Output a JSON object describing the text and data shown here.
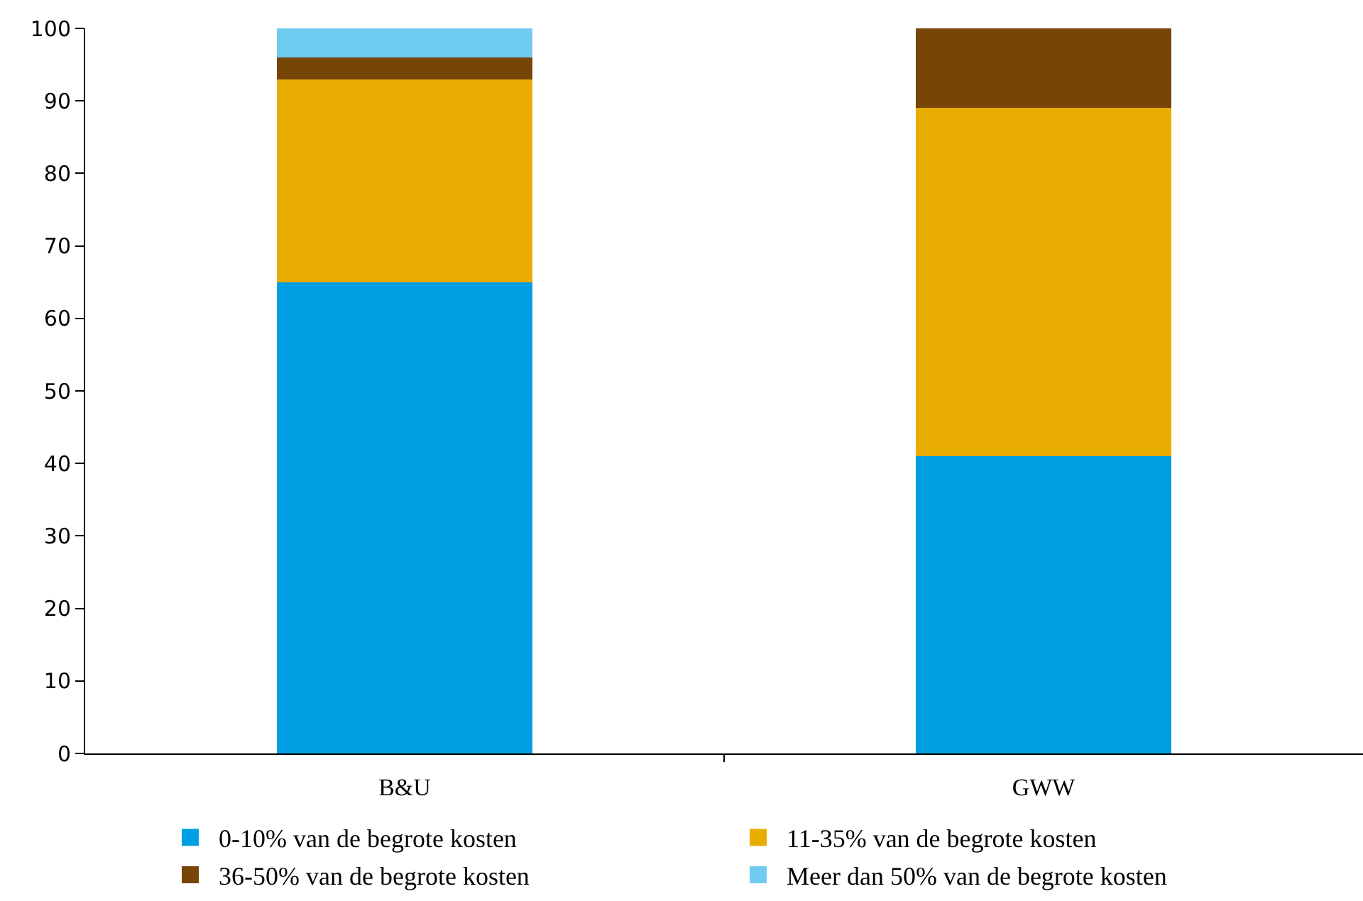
{
  "chart_data": {
    "type": "bar",
    "stacked": true,
    "categories": [
      "B&U",
      "GWW"
    ],
    "series": [
      {
        "name": "0-10% van de begrote kosten",
        "color": "#009fe3",
        "values": [
          65,
          41
        ]
      },
      {
        "name": "11-35% van de begrote kosten",
        "color": "#e9ac00",
        "values": [
          28,
          48
        ]
      },
      {
        "name": "36-50% van de begrote kosten",
        "color": "#774508",
        "values": [
          3,
          11
        ]
      },
      {
        "name": "Meer dan 50% van de begrote kosten",
        "color": "#6fcbf0",
        "values": [
          4,
          0
        ]
      }
    ],
    "ylim": [
      0,
      100
    ],
    "yticks": [
      0,
      10,
      20,
      30,
      40,
      50,
      60,
      70,
      80,
      90,
      100
    ],
    "legend": "bottom"
  }
}
